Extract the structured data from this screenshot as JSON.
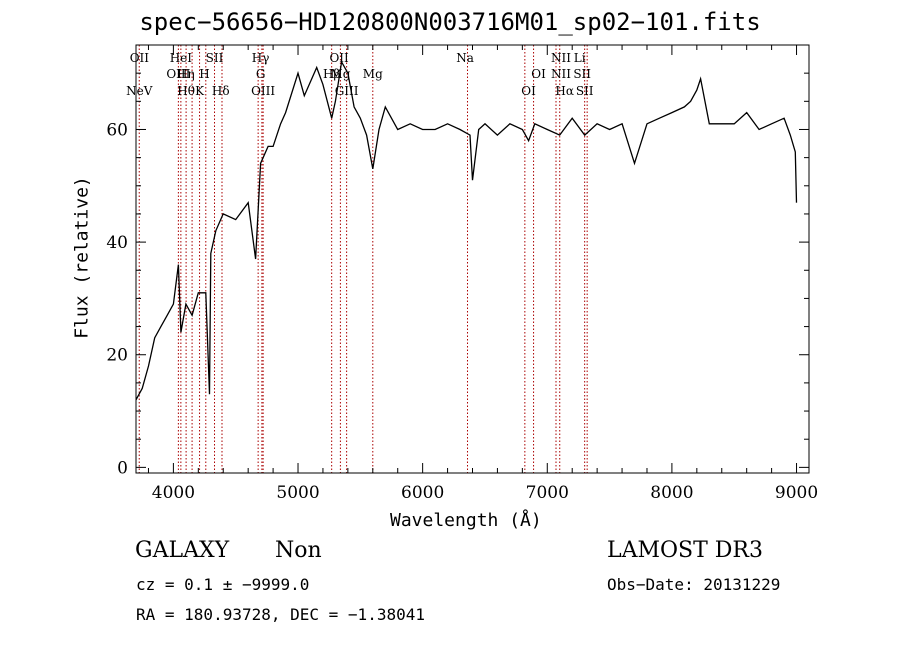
{
  "chart_data": {
    "type": "line",
    "title": "spec−56656−HD120800N003716M01_sp02−101.fits",
    "xlabel": "Wavelength (Å)",
    "ylabel": "Flux (relative)",
    "xlim": [
      3700,
      9100
    ],
    "ylim": [
      -1,
      75
    ],
    "x_ticks": [
      4000,
      5000,
      6000,
      7000,
      8000,
      9000
    ],
    "y_ticks": [
      0,
      20,
      40,
      60
    ],
    "grid": false,
    "series": [
      {
        "x": [
          3700,
          3750,
          3800,
          3850,
          3900,
          3950,
          4000,
          4040,
          4060,
          4100,
          4150,
          4200,
          4260,
          4290,
          4300,
          4340,
          4400,
          4500,
          4600,
          4660,
          4700,
          4760,
          4800,
          4860,
          4900,
          5000,
          5050,
          5150,
          5200,
          5270,
          5300,
          5350,
          5400,
          5450,
          5500,
          5550,
          5600,
          5650,
          5700,
          5800,
          5900,
          6000,
          6100,
          6200,
          6300,
          6380,
          6400,
          6450,
          6500,
          6600,
          6700,
          6800,
          6850,
          6900,
          7000,
          7100,
          7200,
          7300,
          7400,
          7500,
          7600,
          7700,
          7800,
          7900,
          8000,
          8100,
          8150,
          8200,
          8230,
          8300,
          8400,
          8500,
          8600,
          8700,
          8800,
          8900,
          8950,
          8990,
          9000
        ],
        "y": [
          12,
          14,
          18,
          23,
          25,
          27,
          29,
          36,
          24,
          29,
          27,
          31,
          31,
          13,
          38,
          42,
          45,
          44,
          47,
          37,
          54,
          57,
          57,
          61,
          63,
          70,
          66,
          71,
          68,
          62,
          65,
          72,
          70,
          64,
          62,
          59,
          53,
          60,
          64,
          60,
          61,
          60,
          60,
          61,
          60,
          59,
          51,
          60,
          61,
          59,
          61,
          60,
          58,
          61,
          60,
          59,
          62,
          59,
          61,
          60,
          61,
          54,
          61,
          62,
          63,
          64,
          65,
          67,
          69,
          61,
          61,
          61,
          63,
          60,
          61,
          62,
          59,
          56,
          47
        ]
      }
    ],
    "emission_lines": [
      {
        "label": "NeV",
        "x": 3726,
        "row": 3
      },
      {
        "label": "OII",
        "x": 3727,
        "row": 1
      },
      {
        "label": "OIII",
        "x": 4040,
        "row": 2
      },
      {
        "label": "Hθ",
        "x": 4102,
        "row": 3
      },
      {
        "label": "HeI",
        "x": 4060,
        "row": 1
      },
      {
        "label": "Hη",
        "x": 4100,
        "row": 2
      },
      {
        "label": "H",
        "x": 4250,
        "row": 2
      },
      {
        "label": "K",
        "x": 4210,
        "row": 3
      },
      {
        "label": "SII",
        "x": 4330,
        "row": 1
      },
      {
        "label": "Hδ",
        "x": 4380,
        "row": 3
      },
      {
        "label": "Hγ",
        "x": 4700,
        "row": 1
      },
      {
        "label": "G",
        "x": 4700,
        "row": 2
      },
      {
        "label": "OIII",
        "x": 4720,
        "row": 3
      },
      {
        "label": "OII",
        "x": 5330,
        "row": 1
      },
      {
        "label": "Hβ",
        "x": 5270,
        "row": 2
      },
      {
        "label": "Mg",
        "x": 5340,
        "row": 2
      },
      {
        "label": "GIII",
        "x": 5390,
        "row": 3
      },
      {
        "label": "Mg",
        "x": 5600,
        "row": 2
      },
      {
        "label": "Na",
        "x": 6340,
        "row": 1
      },
      {
        "label": "OI",
        "x": 6930,
        "row": 2
      },
      {
        "label": "OI",
        "x": 6850,
        "row": 3
      },
      {
        "label": "NII",
        "x": 7110,
        "row": 1
      },
      {
        "label": "NII",
        "x": 7110,
        "row": 2
      },
      {
        "label": "Hα",
        "x": 7140,
        "row": 3
      },
      {
        "label": "Li",
        "x": 7260,
        "row": 1
      },
      {
        "label": "SII",
        "x": 7280,
        "row": 2
      },
      {
        "label": "SII",
        "x": 7300,
        "row": 3
      }
    ],
    "line_markers_x": [
      3726,
      4040,
      4060,
      4102,
      4150,
      4210,
      4260,
      4330,
      4390,
      4680,
      4710,
      4720,
      5270,
      5340,
      5390,
      5600,
      6360,
      6820,
      6890,
      7070,
      7100,
      7300,
      7320
    ]
  },
  "annotations": {
    "class": "GALAXY",
    "subclass": "Non",
    "survey": "LAMOST DR3",
    "cz": "cz = 0.1 ± −9999.0",
    "obs_date": "Obs−Date: 20131229",
    "coords": "RA = 180.93728, DEC =  −1.38041"
  },
  "colors": {
    "line": "#000000",
    "markers": "#aa0000"
  }
}
